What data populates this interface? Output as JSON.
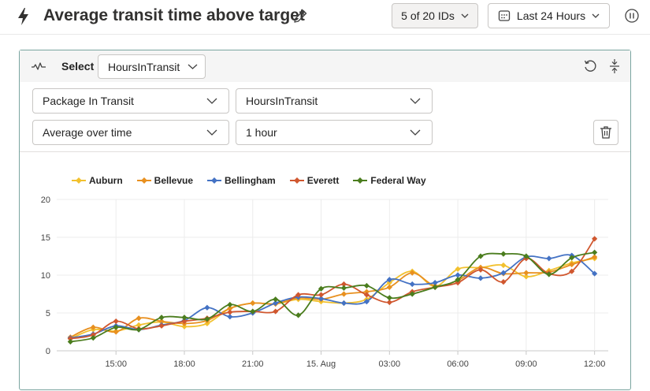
{
  "header": {
    "title": "Average transit time above target",
    "ids_button": "5 of 20 IDs",
    "time_button": "Last 24 Hours"
  },
  "card": {
    "select_label": "Select",
    "select_value": "HoursInTransit",
    "dropdowns": {
      "entity": "Package In Transit",
      "metric": "HoursInTransit",
      "aggregation": "Average over time",
      "interval": "1 hour"
    }
  },
  "colors": {
    "Auburn": "#f2c12e",
    "Bellevue": "#e8901f",
    "Bellingham": "#4472c4",
    "Everett": "#d0572f",
    "Federal Way": "#4b7d1e"
  },
  "chart_data": {
    "type": "line",
    "title": "",
    "xlabel": "",
    "ylabel": "",
    "ylim": [
      0,
      20
    ],
    "yticks": [
      0,
      5,
      10,
      15,
      20
    ],
    "xticks": [
      "15:00",
      "18:00",
      "21:00",
      "15. Aug",
      "03:00",
      "06:00",
      "09:00",
      "12:00"
    ],
    "xtick_hours": [
      15,
      18,
      21,
      24,
      27,
      30,
      33,
      36
    ],
    "x_hours": [
      13,
      14,
      15,
      16,
      17,
      18,
      19,
      20,
      21,
      22,
      23,
      24,
      25,
      26,
      27,
      28,
      29,
      30,
      31,
      32,
      33,
      34,
      35,
      36
    ],
    "grid": true,
    "legend_position": "top-left",
    "series": [
      {
        "name": "Auburn",
        "values": [
          1.6,
          2.8,
          2.6,
          3.4,
          3.8,
          3.2,
          3.6,
          5.6,
          6.3,
          6.2,
          6.8,
          6.5,
          6.3,
          6.8,
          9.0,
          10.5,
          8.5,
          10.8,
          11.0,
          11.3,
          9.8,
          10.6,
          11.6,
          12.2
        ]
      },
      {
        "name": "Bellevue",
        "values": [
          1.8,
          3.1,
          2.5,
          4.3,
          3.9,
          3.6,
          4.0,
          5.6,
          6.3,
          6.2,
          7.0,
          6.8,
          7.5,
          7.8,
          8.4,
          10.3,
          8.6,
          9.3,
          11.0,
          10.2,
          10.3,
          10.4,
          11.4,
          12.4
        ]
      },
      {
        "name": "Bellingham",
        "values": [
          1.7,
          2.2,
          3.3,
          2.8,
          3.4,
          4.0,
          5.7,
          4.5,
          5.0,
          6.3,
          7.1,
          6.9,
          6.3,
          6.5,
          9.4,
          8.8,
          9.0,
          10.0,
          9.6,
          10.3,
          12.4,
          12.2,
          12.6,
          10.2
        ]
      },
      {
        "name": "Everett",
        "values": [
          1.6,
          2.1,
          3.9,
          2.9,
          3.3,
          3.9,
          4.3,
          5.1,
          5.2,
          5.2,
          7.4,
          7.4,
          8.8,
          7.4,
          6.4,
          7.8,
          8.4,
          9.0,
          10.7,
          9.1,
          12.2,
          10.2,
          10.5,
          14.8
        ]
      },
      {
        "name": "Federal Way",
        "values": [
          1.2,
          1.7,
          3.1,
          2.8,
          4.4,
          4.4,
          4.2,
          6.1,
          5.2,
          6.8,
          4.7,
          8.2,
          8.3,
          8.6,
          7.0,
          7.5,
          8.4,
          9.4,
          12.5,
          12.8,
          12.5,
          10.1,
          12.3,
          13.0
        ]
      }
    ]
  }
}
